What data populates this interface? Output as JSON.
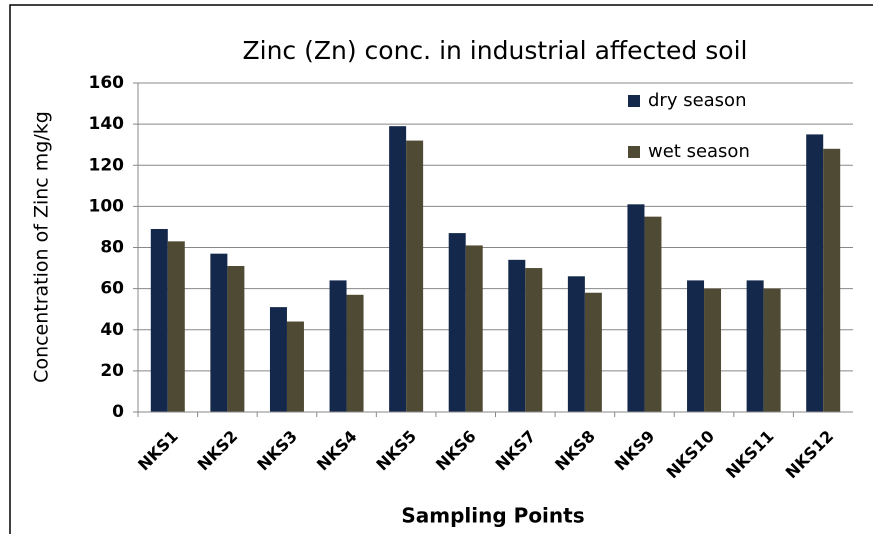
{
  "chart_data": {
    "type": "bar",
    "title": "Zinc (Zn) conc. in industrial affected soil",
    "x_label": "Sampling Points",
    "y_label": "Concentration of Zinc mg/kg",
    "categories": [
      "NKS1",
      "NKS2",
      "NKS3",
      "NKS4",
      "NKS5",
      "NKS6",
      "NKS7",
      "NKS8",
      "NKS9",
      "NKS10",
      "NKS11",
      "NKS12"
    ],
    "series": [
      {
        "name": "dry season",
        "color": "#14284b",
        "values": [
          89,
          77,
          51,
          64,
          139,
          87,
          74,
          66,
          101,
          64,
          64,
          135
        ]
      },
      {
        "name": "wet season",
        "color": "#4f4a33",
        "values": [
          83,
          71,
          44,
          57,
          132,
          81,
          70,
          58,
          95,
          60,
          60,
          128
        ]
      }
    ],
    "ylim": [
      0,
      160
    ],
    "yticks": [
      0,
      20,
      40,
      60,
      80,
      100,
      120,
      140,
      160
    ],
    "grid": true,
    "legend": "top-right"
  }
}
